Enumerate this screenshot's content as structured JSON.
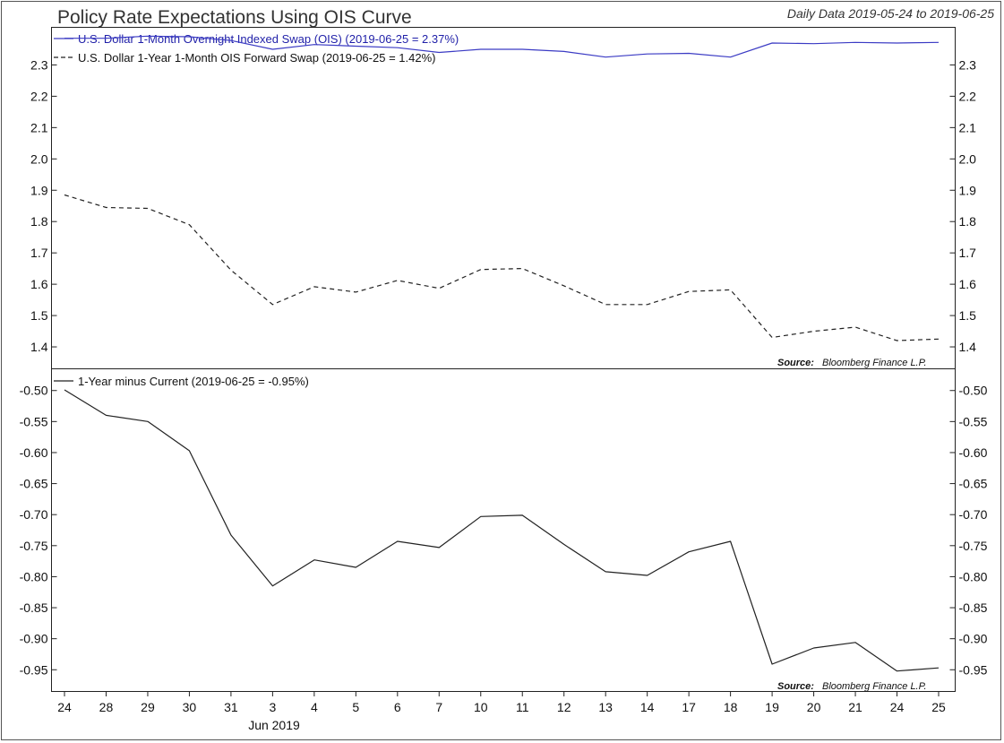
{
  "chart_data": {
    "type": "line",
    "title": "Policy Rate Expectations Using OIS Curve",
    "subtitle": "Daily Data 2019-05-24 to 2019-06-25",
    "source": {
      "label": "Source:",
      "text": "Bloomberg Finance L.P."
    },
    "categories": [
      "24",
      "28",
      "29",
      "30",
      "31",
      "3",
      "4",
      "5",
      "6",
      "7",
      "10",
      "11",
      "12",
      "13",
      "14",
      "17",
      "18",
      "19",
      "20",
      "21",
      "24",
      "25"
    ],
    "x_axis_sublabel": "Jun 2019",
    "panels": [
      {
        "name": "top",
        "ylim": [
          1.33,
          2.42
        ],
        "yticks": [
          "1.4",
          "1.5",
          "1.6",
          "1.7",
          "1.8",
          "1.9",
          "2.0",
          "2.1",
          "2.2",
          "2.3"
        ],
        "series": [
          {
            "name": "U.S. Dollar 1-Month Overnight Indexed Swap (OIS) (2019-06-25 = 2.37%)",
            "color": "#3b3bc4",
            "style": "solid",
            "values": [
              2.385,
              2.385,
              2.392,
              2.39,
              2.378,
              2.35,
              2.365,
              2.36,
              2.355,
              2.34,
              2.35,
              2.35,
              2.343,
              2.325,
              2.335,
              2.337,
              2.325,
              2.37,
              2.368,
              2.372,
              2.37,
              2.372
            ]
          },
          {
            "name": "U.S. Dollar 1-Year 1-Month OIS Forward Swap (2019-06-25 = 1.42%)",
            "color": "#222222",
            "style": "dashed",
            "values": [
              1.885,
              1.845,
              1.842,
              1.79,
              1.645,
              1.535,
              1.592,
              1.575,
              1.612,
              1.587,
              1.647,
              1.65,
              1.595,
              1.535,
              1.535,
              1.577,
              1.582,
              1.43,
              1.45,
              1.463,
              1.42,
              1.425
            ]
          }
        ]
      },
      {
        "name": "bottom",
        "ylim": [
          -0.985,
          -0.465
        ],
        "yticks": [
          "-0.95",
          "-0.90",
          "-0.85",
          "-0.80",
          "-0.75",
          "-0.70",
          "-0.65",
          "-0.60",
          "-0.55",
          "-0.50"
        ],
        "series": [
          {
            "name": "1-Year minus Current (2019-06-25 = -0.95%)",
            "color": "#222222",
            "style": "solid",
            "values": [
              -0.499,
              -0.54,
              -0.55,
              -0.597,
              -0.733,
              -0.815,
              -0.773,
              -0.785,
              -0.743,
              -0.753,
              -0.703,
              -0.701,
              -0.748,
              -0.792,
              -0.798,
              -0.76,
              -0.743,
              -0.941,
              -0.915,
              -0.906,
              -0.952,
              -0.947
            ]
          }
        ]
      }
    ]
  }
}
